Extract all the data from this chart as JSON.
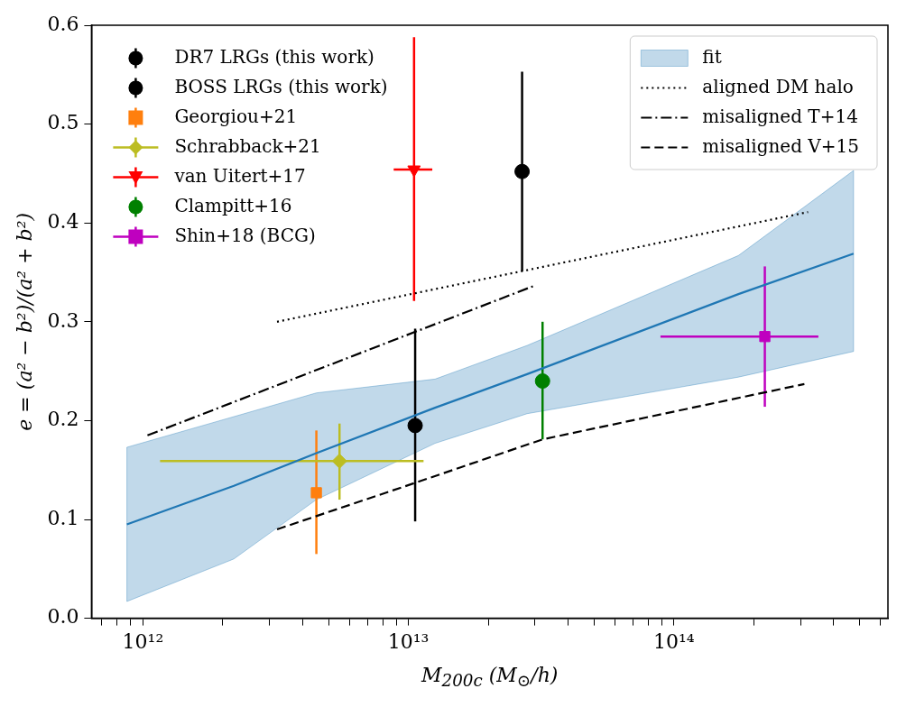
{
  "chart_data": {
    "type": "scatter",
    "xlabel": "M$_{200c}$ (M$_{⊙}$/h)",
    "ylabel": "e = (a² − b²)/(a² + b²)",
    "log": "x",
    "xlim": [
      640000000000.0,
      640000000000000.0
    ],
    "ylim": [
      0,
      0.6
    ],
    "xticks": [
      {
        "value": 700000000000.0,
        "label": null
      },
      {
        "value": 800000000000.0,
        "label": null
      },
      {
        "value": 900000000000.0,
        "label": null
      },
      {
        "value": 1000000000000.0,
        "label": "10¹²"
      },
      {
        "value": 2000000000000.0,
        "label": null
      },
      {
        "value": 3000000000000.0,
        "label": null
      },
      {
        "value": 4000000000000.0,
        "label": null
      },
      {
        "value": 5000000000000.0,
        "label": null
      },
      {
        "value": 6000000000000.0,
        "label": null
      },
      {
        "value": 7000000000000.0,
        "label": null
      },
      {
        "value": 8000000000000.0,
        "label": null
      },
      {
        "value": 9000000000000.0,
        "label": null
      },
      {
        "value": 10000000000000.0,
        "label": "10¹³"
      },
      {
        "value": 20000000000000.0,
        "label": null
      },
      {
        "value": 30000000000000.0,
        "label": null
      },
      {
        "value": 40000000000000.0,
        "label": null
      },
      {
        "value": 50000000000000.0,
        "label": null
      },
      {
        "value": 60000000000000.0,
        "label": null
      },
      {
        "value": 70000000000000.0,
        "label": null
      },
      {
        "value": 80000000000000.0,
        "label": null
      },
      {
        "value": 90000000000000.0,
        "label": null
      },
      {
        "value": 100000000000000.0,
        "label": "10¹⁴"
      },
      {
        "value": 200000000000000.0,
        "label": null
      },
      {
        "value": 300000000000000.0,
        "label": null
      },
      {
        "value": 400000000000000.0,
        "label": null
      },
      {
        "value": 500000000000000.0,
        "label": null
      },
      {
        "value": 600000000000000.0,
        "label": null
      }
    ],
    "yticks": [
      {
        "value": 0,
        "label": "0.0"
      },
      0.1,
      0.2,
      0.3,
      0.4,
      0.5,
      0.6
    ],
    "legend": "top left",
    "series": [
      {
        "name": "DR7 LRGs (this work)",
        "marker": "circle",
        "color": "#000000",
        "x": [
          26800000000000.0
        ],
        "values": [
          0.452
        ],
        "errors": [
          [
            0.351,
            0.553
          ]
        ]
      },
      {
        "name": "BOSS LRGs (this work)",
        "marker": "circle",
        "color": "#000000",
        "x": [
          10600000000000.0
        ],
        "values": [
          0.195
        ],
        "errors": [
          [
            0.098,
            0.293
          ]
        ]
      },
      {
        "name": "Georgiou+21",
        "marker": "square",
        "color": "#ff7f0e",
        "x": [
          4500000000000.0
        ],
        "values": [
          0.127
        ],
        "errors": [
          [
            0.065,
            0.19
          ]
        ]
      },
      {
        "name": "Schrabback+21",
        "marker": "diamond",
        "color": "#bcbd22",
        "x": [
          5500000000000.0
        ],
        "values": [
          0.159
        ],
        "errors": [
          [
            0.12,
            0.197
          ]
        ],
        "xerrors": [
          [
            1160000000000.0,
            11400000000000.0
          ]
        ]
      },
      {
        "name": "van Uitert+17",
        "marker": "triangle",
        "color": "#ff0000",
        "x": [
          10500000000000.0
        ],
        "values": [
          0.454
        ],
        "errors": [
          [
            0.321,
            0.588
          ]
        ],
        "xerrors": [
          [
            8800000000000.0,
            12300000000000.0
          ]
        ]
      },
      {
        "name": "Clampitt+16",
        "marker": "circle",
        "color": "#008000",
        "x": [
          32000000000000.0
        ],
        "values": [
          0.24
        ],
        "errors": [
          [
            0.181,
            0.3
          ]
        ]
      },
      {
        "name": "Shin+18 (BCG)",
        "marker": "square",
        "color": "#bf00bf",
        "x": [
          220000000000000.0
        ],
        "values": [
          0.285
        ],
        "errors": [
          [
            0.214,
            0.356
          ]
        ],
        "xerrors": [
          [
            89000000000000.0,
            350000000000000.0
          ]
        ]
      },
      {
        "name": "fit",
        "type": "line",
        "color": "#1f77b4",
        "x": [
          870000000000.0,
          2200000000000.0,
          4500000000000.0,
          12600000000000.0,
          28000000000000.0,
          175000000000000.0,
          475000000000000.0
        ],
        "values": [
          0.095,
          0.134,
          0.167,
          0.213,
          0.247,
          0.328,
          0.369
        ],
        "lower": [
          0.017,
          0.06,
          0.12,
          0.177,
          0.207,
          0.244,
          0.27
        ],
        "upper": [
          0.173,
          0.204,
          0.228,
          0.242,
          0.276,
          0.367,
          0.453
        ]
      },
      {
        "name": "aligned DM halo",
        "type": "line",
        "line_style": "dotted",
        "color": "#000000",
        "x": [
          3200000000000.0,
          320000000000000.0
        ],
        "values": [
          0.3,
          0.411
        ]
      },
      {
        "name": "misaligned T+14",
        "type": "line",
        "line_style": "dashdot",
        "color": "#000000",
        "x": [
          1040000000000.0,
          29500000000000.0
        ],
        "values": [
          0.185,
          0.336
        ]
      },
      {
        "name": "misaligned V+15",
        "type": "line",
        "line_style": "dashed",
        "color": "#000000",
        "x": [
          3200000000000.0,
          10600000000000.0,
          32000000000000.0,
          310000000000000.0
        ],
        "values": [
          0.09,
          0.137,
          0.181,
          0.237
        ]
      }
    ]
  }
}
